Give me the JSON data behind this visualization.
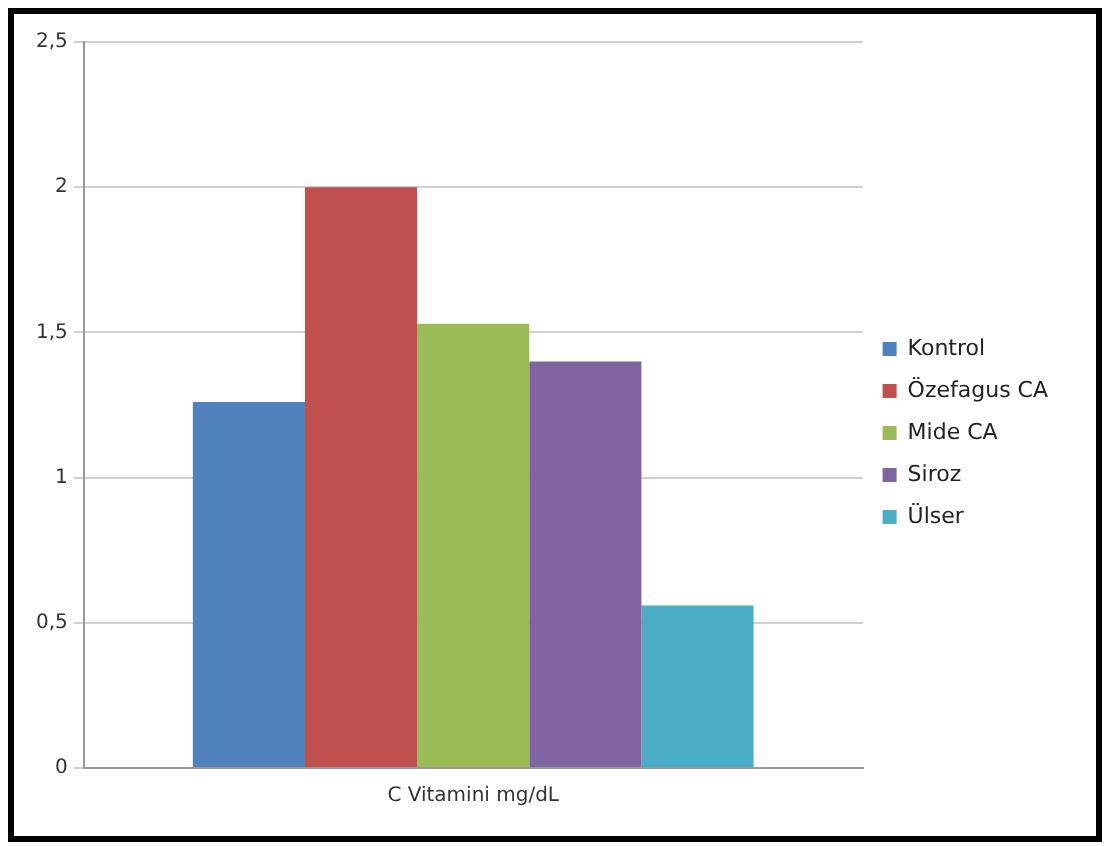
{
  "chart_data": {
    "type": "bar",
    "categories": [
      "C Vitamini mg/dL"
    ],
    "series": [
      {
        "name": "Kontrol",
        "color": "#4f81bd",
        "values": [
          1.26
        ]
      },
      {
        "name": "Özefagus CA",
        "color": "#c0504d",
        "values": [
          2.0
        ]
      },
      {
        "name": "Mide CA",
        "color": "#9bbb59",
        "values": [
          1.53
        ]
      },
      {
        "name": "Siroz",
        "color": "#8064a2",
        "values": [
          1.4
        ]
      },
      {
        "name": "Ülser",
        "color": "#4bacc6",
        "values": [
          0.56
        ]
      }
    ],
    "ylim": [
      0,
      2.5
    ],
    "yticks": [
      {
        "value": 0,
        "label": "0"
      },
      {
        "value": 0.5,
        "label": "0,5"
      },
      {
        "value": 1,
        "label": "1"
      },
      {
        "value": 1.5,
        "label": "1,5"
      },
      {
        "value": 2,
        "label": "2"
      },
      {
        "value": 2.5,
        "label": "2,5"
      }
    ],
    "grid": "y",
    "legend": "right"
  }
}
